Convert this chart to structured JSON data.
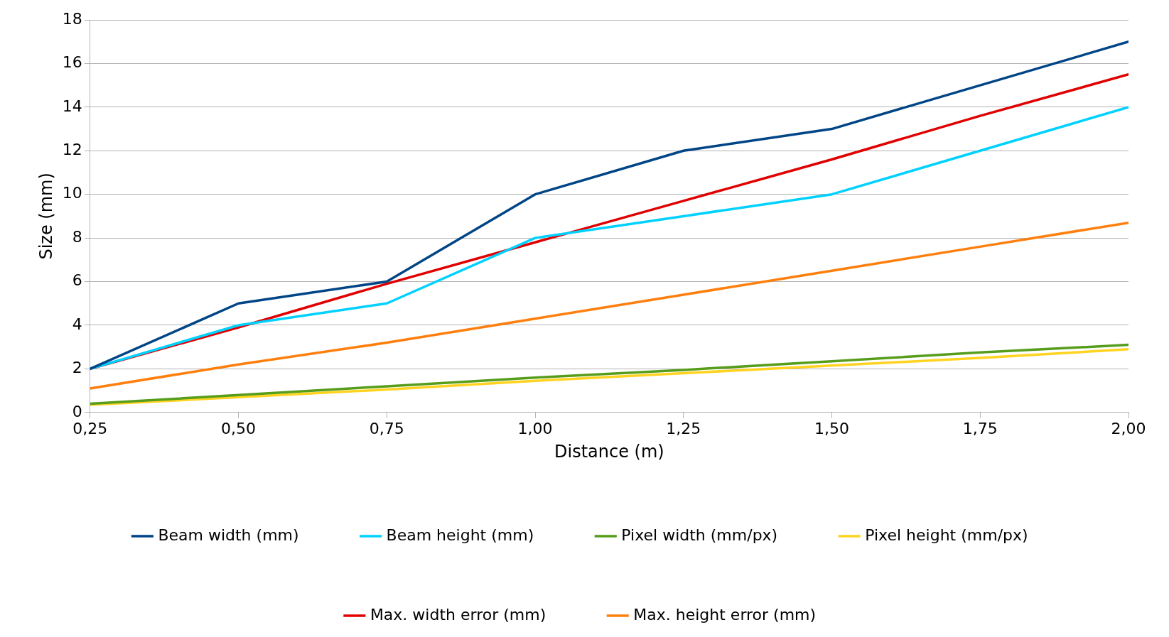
{
  "chart_data": {
    "type": "line",
    "xlabel": "Distance (m)",
    "ylabel": "Size (mm)",
    "x": [
      0.25,
      0.5,
      0.75,
      1.0,
      1.25,
      1.5,
      1.75,
      2.0
    ],
    "xlim": [
      0.25,
      2.0
    ],
    "xticks": [
      {
        "value": 0.25,
        "label": "0,25"
      },
      {
        "value": 0.5,
        "label": "0,50"
      },
      {
        "value": 0.75,
        "label": "0,75"
      },
      {
        "value": 1.0,
        "label": "1,00"
      },
      {
        "value": 1.25,
        "label": "1,25"
      },
      {
        "value": 1.5,
        "label": "1,50"
      },
      {
        "value": 1.75,
        "label": "1,75"
      },
      {
        "value": 2.0,
        "label": "2,00"
      }
    ],
    "ylim": [
      0,
      18
    ],
    "yticks": [
      0,
      2,
      4,
      6,
      8,
      10,
      12,
      14,
      16,
      18
    ],
    "grid": "y",
    "legend": "bottom",
    "marker": "none",
    "line_style": "solid",
    "series": [
      {
        "name": "Beam width (mm)",
        "color": "#004586",
        "values": [
          2,
          5,
          6,
          10,
          12,
          13,
          15,
          17
        ]
      },
      {
        "name": "Beam height (mm)",
        "color": "#00d1ff",
        "values": [
          2,
          4,
          5,
          8,
          9,
          10,
          12,
          14
        ]
      },
      {
        "name": "Pixel width (mm/px)",
        "color": "#579d1c",
        "values": [
          0.4,
          0.8,
          1.2,
          1.6,
          1.95,
          2.35,
          2.75,
          3.1
        ]
      },
      {
        "name": "Pixel height (mm/px)",
        "color": "#ffd320",
        "values": [
          0.35,
          0.7,
          1.05,
          1.45,
          1.8,
          2.15,
          2.5,
          2.9
        ]
      },
      {
        "name": "Max. width error (mm)",
        "color": "#e00000",
        "values": [
          2,
          3.9,
          5.9,
          7.8,
          9.7,
          11.6,
          13.6,
          15.5
        ]
      },
      {
        "name": "Max. height error (mm)",
        "color": "#ff7f0e",
        "values": [
          1.1,
          2.2,
          3.2,
          4.3,
          5.4,
          6.5,
          7.6,
          8.7
        ]
      }
    ]
  }
}
